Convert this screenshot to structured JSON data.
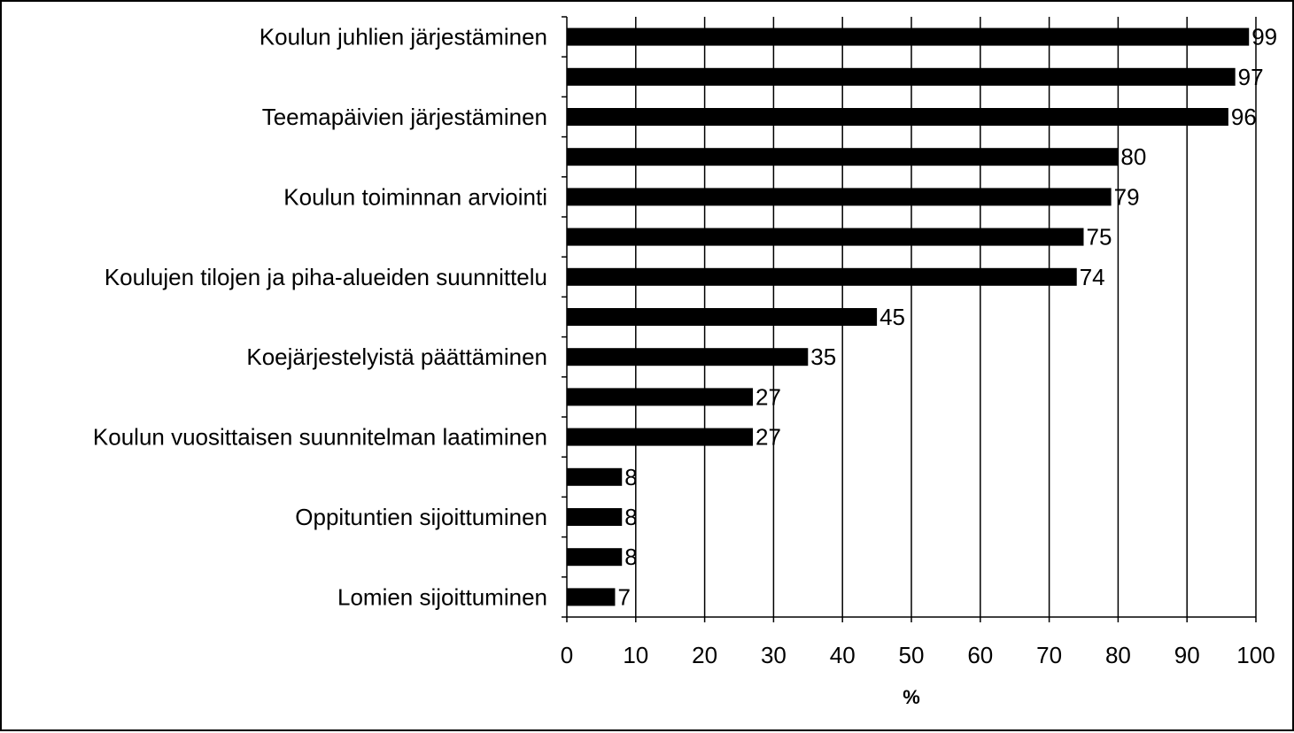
{
  "chart_data": {
    "type": "bar",
    "orientation": "horizontal",
    "categories": [
      "Koulun juhlien järjestäminen",
      "",
      "Teemapäivien järjestäminen",
      "",
      "Koulun toiminnan arviointi",
      "",
      "Koulujen tilojen ja piha-alueiden suunnittelu",
      "",
      "Koejärjestelyistä päättäminen",
      "",
      "Koulun vuosittaisen suunnitelman laatiminen",
      "",
      "Oppituntien sijoittuminen",
      "",
      "Lomien sijoittuminen"
    ],
    "values": [
      99,
      97,
      96,
      80,
      79,
      75,
      74,
      45,
      35,
      27,
      27,
      8,
      8,
      8,
      7
    ],
    "data_labels": [
      "99",
      "97",
      "96",
      "80",
      "79",
      "75",
      "74",
      "45",
      "35",
      "27",
      "27",
      "8",
      "8",
      "8",
      "7"
    ],
    "xlabel": "%",
    "ylabel": "",
    "xlim": [
      0,
      100
    ],
    "xticks": [
      "0",
      "10",
      "20",
      "30",
      "40",
      "50",
      "60",
      "70",
      "80",
      "90",
      "100"
    ],
    "grid": "vertical",
    "legend": "none",
    "colors": {
      "bar": "#000000",
      "grid": "#000000",
      "background": "#ffffff"
    }
  }
}
